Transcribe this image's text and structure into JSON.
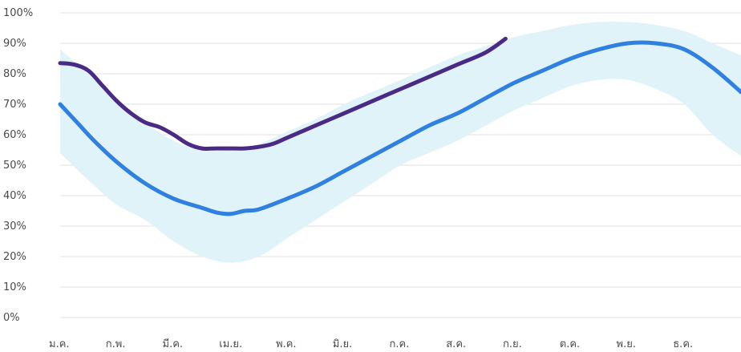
{
  "chart_data": {
    "type": "area",
    "title": "",
    "xlabel": "",
    "ylabel": "",
    "x_unit": "month",
    "xlim": [
      0,
      12
    ],
    "ylim": [
      0,
      100
    ],
    "y_ticks": [
      "0%",
      "10%",
      "20%",
      "30%",
      "40%",
      "50%",
      "60%",
      "70%",
      "80%",
      "90%",
      "100%"
    ],
    "x_ticks": [
      "ม.ค.",
      "ก.พ.",
      "มี.ค.",
      "เม.ย.",
      "พ.ค.",
      "มิ.ย.",
      "ก.ค.",
      "ส.ค.",
      "ก.ย.",
      "ต.ค.",
      "พ.ย.",
      "ธ.ค."
    ],
    "grid": true,
    "legend": "none",
    "colors": {
      "band": "#dff3f8",
      "average": "#2f80e0",
      "current": "#4a2a85",
      "grid": "#e0e0e0"
    },
    "band": {
      "x": [
        0.0,
        0.5,
        1.0,
        1.5,
        2.0,
        2.5,
        3.0,
        3.5,
        4.0,
        4.5,
        5.0,
        5.5,
        6.0,
        6.5,
        7.0,
        7.5,
        8.0,
        8.5,
        9.0,
        9.5,
        10.0,
        10.5,
        11.0,
        11.5,
        12.0
      ],
      "upper": [
        88,
        80,
        72,
        64,
        58,
        55,
        55,
        57,
        61,
        65,
        70,
        74,
        78,
        82,
        86,
        89,
        92,
        94,
        96,
        97,
        97,
        96,
        94,
        90,
        86
      ],
      "lower": [
        54,
        45,
        37,
        32,
        25,
        20,
        18,
        20,
        26,
        32,
        38,
        44,
        50,
        54,
        58,
        63,
        68,
        72,
        76,
        78,
        78,
        75,
        70,
        60,
        53
      ]
    },
    "series": [
      {
        "x": [
          0.0,
          0.3,
          0.6,
          1.0,
          1.5,
          2.0,
          2.5,
          2.75,
          3.0,
          3.25,
          3.5,
          4.0,
          4.5,
          5.0,
          5.5,
          6.0,
          6.5,
          7.0,
          7.5,
          8.0,
          8.5,
          9.0,
          9.5,
          10.0,
          10.5,
          11.0,
          11.5,
          12.0
        ],
        "values": [
          70,
          64,
          58,
          51,
          44,
          39,
          36,
          34.5,
          34,
          35,
          35.5,
          39,
          43,
          48,
          53,
          58,
          63,
          67,
          72,
          77,
          81,
          85,
          88,
          90,
          90,
          88,
          82,
          74
        ]
      },
      {
        "x": [
          0.0,
          0.25,
          0.5,
          0.75,
          1.0,
          1.25,
          1.5,
          1.75,
          2.0,
          2.25,
          2.5,
          2.75,
          3.0,
          3.25,
          3.5,
          3.75,
          4.0,
          4.5,
          5.0,
          5.5,
          6.0,
          6.5,
          7.0,
          7.5,
          7.85
        ],
        "values": [
          83.5,
          83,
          81,
          76,
          71,
          67,
          64,
          62.5,
          60,
          57,
          55.5,
          55.5,
          55.5,
          55.5,
          56,
          57,
          59,
          63,
          67,
          71,
          75,
          79,
          83,
          87,
          91.5
        ]
      }
    ]
  }
}
